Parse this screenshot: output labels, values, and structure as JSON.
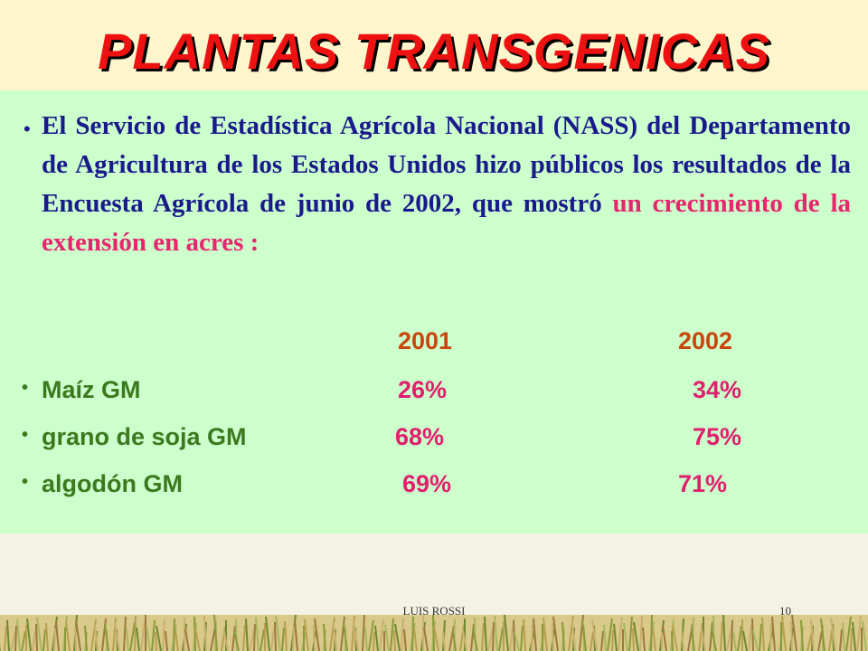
{
  "title": "PLANTAS TRANSGENICAS",
  "paragraph": {
    "text": "El Servicio de Estadística Agrícola Nacional (NASS) del Departamento de Agricultura de los Estados Unidos hizo públicos los resultados de la Encuesta Agrícola de junio de 2002, que mostró",
    "highlight": "un crecimiento de la extensión en acres :"
  },
  "table": {
    "years": [
      "2001",
      "2002"
    ],
    "rows": [
      [
        "Maíz GM",
        "26%",
        "34%"
      ],
      [
        "grano de soja GM",
        "68%",
        "75%"
      ],
      [
        "algodón GM",
        "69%",
        "71%"
      ]
    ]
  },
  "footer": {
    "author": "LUIS ROSSI",
    "page": "10"
  }
}
